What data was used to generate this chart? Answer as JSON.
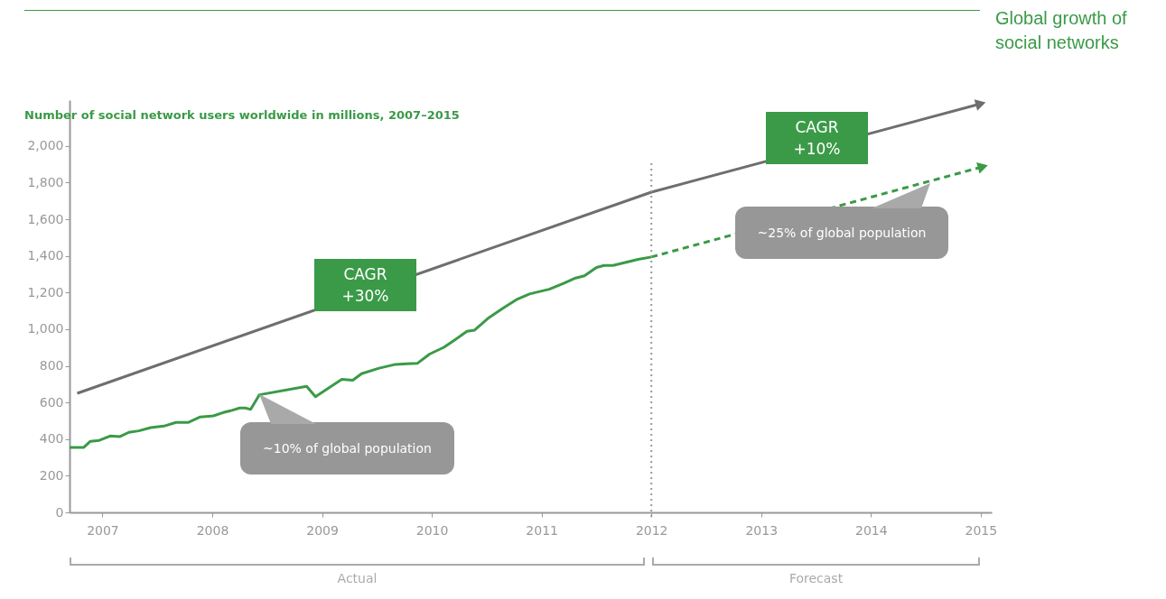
{
  "chart_data": {
    "type": "line",
    "title": "Global growth of social networks",
    "subtitle": "Number of social network users worldwide in millions, 2007–2015",
    "xlim": [
      2006.7,
      2015.1
    ],
    "xticks": [
      2007,
      2008,
      2009,
      2010,
      2011,
      2012,
      2013,
      2014,
      2015
    ],
    "ylim": [
      0,
      2250
    ],
    "yticks": [
      0,
      200,
      400,
      600,
      800,
      {
        "value": 1000,
        "label": "1,000"
      },
      {
        "value": 1200,
        "label": "1,200"
      },
      {
        "value": 1400,
        "label": "1,400"
      },
      {
        "value": 1600,
        "label": "1,600"
      },
      {
        "value": 1800,
        "label": "1,800"
      },
      {
        "value": 2000,
        "label": "2,000"
      }
    ],
    "series": [
      {
        "color": "#3a9a47",
        "x": [
          2006.7,
          2006.83,
          2006.89,
          2006.97,
          2007.07,
          2007.16,
          2007.24,
          2007.33,
          2007.44,
          2007.56,
          2007.67,
          2007.78,
          2007.89,
          2008.01,
          2008.1,
          2008.18,
          2008.25,
          2008.3,
          2008.35,
          2008.43,
          2008.86,
          2008.94,
          2009.18,
          2009.28,
          2009.36,
          2009.52,
          2009.67,
          2009.77,
          2009.87,
          2009.98,
          2010.11,
          2010.21,
          2010.32,
          2010.39,
          2010.51,
          2010.65,
          2010.78,
          2010.89,
          2011,
          2011.07,
          2011.2,
          2011.31,
          2011.39,
          2011.5,
          2011.57,
          2011.65,
          2011.77,
          2011.88,
          2012
        ],
        "values": [
          355,
          355,
          388,
          393,
          417,
          414,
          437,
          445,
          463,
          471,
          491,
          491,
          521,
          527,
          545,
          557,
          570,
          570,
          562,
          642,
          688,
          631,
          726,
          721,
          757,
          787,
          808,
          811,
          814,
          864,
          901,
          942,
          988,
          995,
          1058,
          1115,
          1164,
          1192,
          1208,
          1218,
          1250,
          1279,
          1291,
          1337,
          1348,
          1348,
          1365,
          1381,
          1394
        ]
      },
      {
        "color": "#3a9a47",
        "line_style": "dashed",
        "x": [
          2012,
          2015.02
        ],
        "values": [
          1394,
          1887
        ]
      },
      {
        "color": "#6e6e6e",
        "x": [
          2006.77,
          2012,
          2015
        ],
        "values": [
          650,
          1748,
          2230
        ]
      }
    ],
    "ref_lines": [
      {
        "axis": "x",
        "value": 2012,
        "line_style": "dotted",
        "color": "#9a9a9a"
      }
    ],
    "annotations": [
      "CAGR\n+30%",
      "CAGR\n+10%",
      "~10% of global population",
      "~25% of global population",
      "Actual",
      "Forecast"
    ]
  }
}
